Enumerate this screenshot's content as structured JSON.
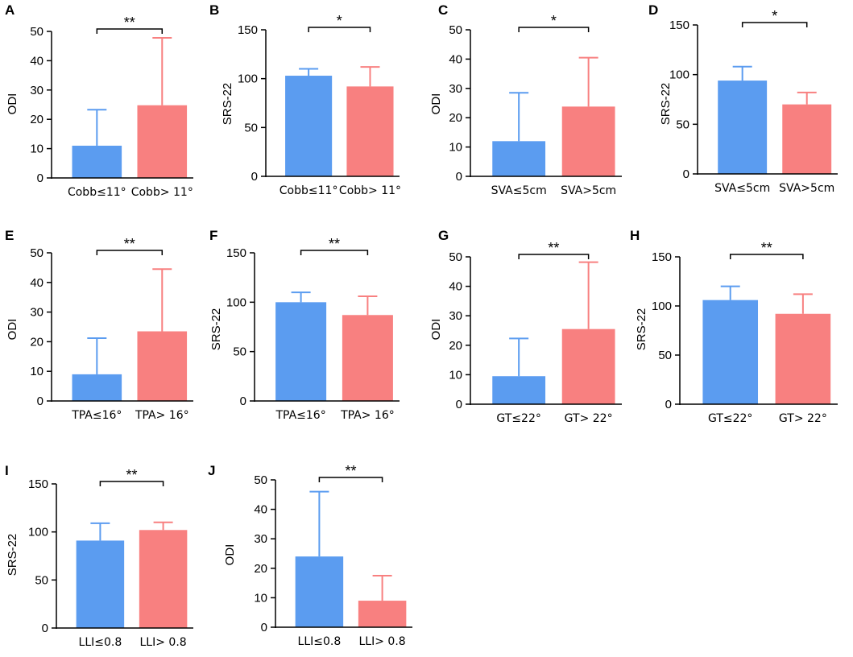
{
  "colors": {
    "group1": "#5B9CF0",
    "group2": "#F88080",
    "axis": "#000000"
  },
  "chart_data": [
    {
      "panel": "A",
      "type": "bar",
      "ylabel": "ODI",
      "ylim": [
        0,
        50
      ],
      "yticks": [
        0,
        10,
        20,
        30,
        40,
        50
      ],
      "categories": [
        "Cobb≤11°",
        "Cobb> 11°"
      ],
      "values": [
        11,
        24.8
      ],
      "error_upper": [
        23.3,
        47.8
      ],
      "significance": "**"
    },
    {
      "panel": "B",
      "type": "bar",
      "ylabel": "SRS-22",
      "ylim": [
        0,
        150
      ],
      "yticks": [
        0,
        50,
        100,
        150
      ],
      "categories": [
        "Cobb≤11°",
        "Cobb> 11°"
      ],
      "values": [
        103,
        92
      ],
      "error_upper": [
        110,
        112
      ],
      "significance": "*"
    },
    {
      "panel": "C",
      "type": "bar",
      "ylabel": "ODI",
      "ylim": [
        0,
        50
      ],
      "yticks": [
        0,
        10,
        20,
        30,
        40,
        50
      ],
      "categories": [
        "SVA≤5cm",
        "SVA>5cm"
      ],
      "values": [
        12,
        23.8
      ],
      "error_upper": [
        28.5,
        40.5
      ],
      "significance": "*"
    },
    {
      "panel": "D",
      "type": "bar",
      "ylabel": "SRS-22",
      "ylim": [
        0,
        150
      ],
      "yticks": [
        0,
        50,
        100,
        150
      ],
      "categories": [
        "SVA≤5cm",
        "SVA>5cm"
      ],
      "values": [
        94,
        70
      ],
      "error_upper": [
        108,
        82
      ],
      "significance": "*"
    },
    {
      "panel": "E",
      "type": "bar",
      "ylabel": "ODI",
      "ylim": [
        0,
        50
      ],
      "yticks": [
        0,
        10,
        20,
        30,
        40,
        50
      ],
      "categories": [
        "TPA≤16°",
        "TPA> 16°"
      ],
      "values": [
        9,
        23.5
      ],
      "error_upper": [
        21.2,
        44.5
      ],
      "significance": "**"
    },
    {
      "panel": "F",
      "type": "bar",
      "ylabel": "SRS-22",
      "ylim": [
        0,
        150
      ],
      "yticks": [
        0,
        50,
        100,
        150
      ],
      "categories": [
        "TPA≤16°",
        "TPA> 16°"
      ],
      "values": [
        100,
        87
      ],
      "error_upper": [
        110,
        106
      ],
      "significance": "**"
    },
    {
      "panel": "G",
      "type": "bar",
      "ylabel": "ODI",
      "ylim": [
        0,
        50
      ],
      "yticks": [
        0,
        10,
        20,
        30,
        40,
        50
      ],
      "categories": [
        "GT≤22°",
        "GT> 22°"
      ],
      "values": [
        9.5,
        25.5
      ],
      "error_upper": [
        22.3,
        48.2
      ],
      "significance": "**"
    },
    {
      "panel": "H",
      "type": "bar",
      "ylabel": "SRS-22",
      "ylim": [
        0,
        150
      ],
      "yticks": [
        0,
        50,
        100,
        150
      ],
      "categories": [
        "GT≤22°",
        "GT> 22°"
      ],
      "values": [
        106,
        92
      ],
      "error_upper": [
        120,
        112
      ],
      "significance": "**"
    },
    {
      "panel": "I",
      "type": "bar",
      "ylabel": "SRS-22",
      "ylim": [
        0,
        150
      ],
      "yticks": [
        0,
        50,
        100,
        150
      ],
      "categories": [
        "LLI≤0.8",
        "LLI> 0.8"
      ],
      "values": [
        91,
        102
      ],
      "error_upper": [
        109,
        110
      ],
      "significance": "**"
    },
    {
      "panel": "J",
      "type": "bar",
      "ylabel": "ODI",
      "ylim": [
        0,
        50
      ],
      "yticks": [
        0,
        10,
        20,
        30,
        40,
        50
      ],
      "categories": [
        "LLI≤0.8",
        "LLI> 0.8"
      ],
      "values": [
        24,
        9
      ],
      "error_upper": [
        46,
        17.5
      ],
      "significance": "**"
    }
  ]
}
